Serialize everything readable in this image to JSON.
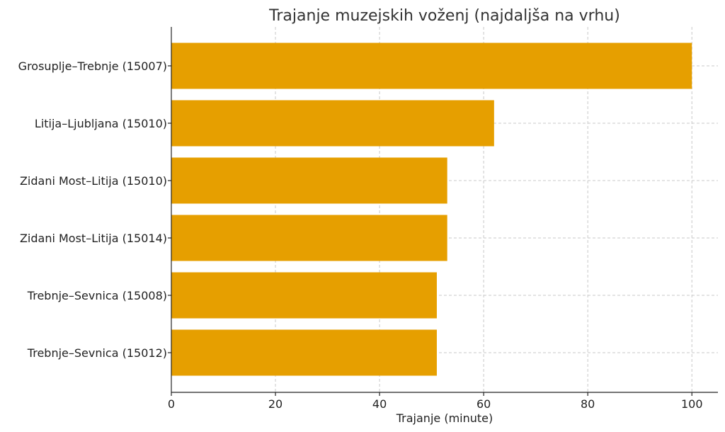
{
  "chart_data": {
    "type": "bar",
    "orientation": "horizontal",
    "title": "Trajanje muzejskih voženj (najdaljša na vrhu)",
    "xlabel": "Trajanje (minute)",
    "ylabel": "",
    "xlim": [
      0,
      105
    ],
    "xticks": [
      0,
      20,
      40,
      60,
      80,
      100
    ],
    "grid": true,
    "bar_color": "#E69F00",
    "categories": [
      "Grosuplje–Trebnje (15007)",
      "Litija–Ljubljana (15010)",
      "Zidani Most–Litija (15010)",
      "Zidani Most–Litija (15014)",
      "Trebnje–Sevnica (15008)",
      "Trebnje–Sevnica (15012)"
    ],
    "values": [
      100,
      62,
      53,
      53,
      51,
      51
    ]
  }
}
